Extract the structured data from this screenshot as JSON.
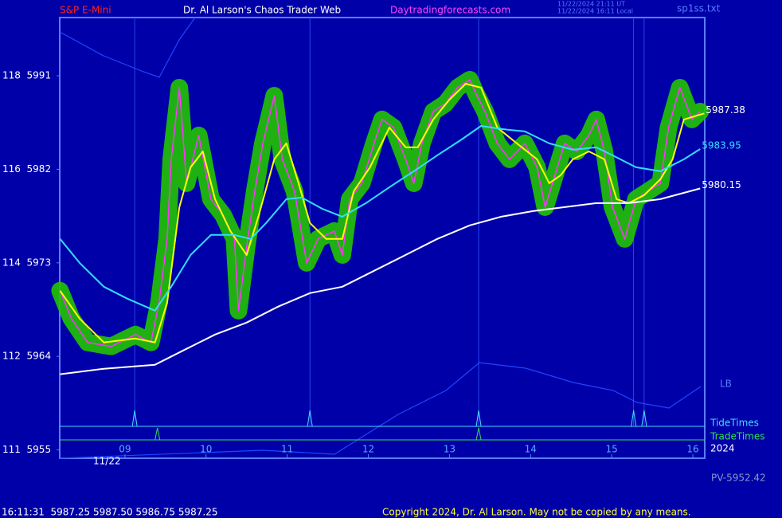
{
  "chart_data": {
    "type": "line",
    "title": "Dr. Al Larson's Chaos Trader Web",
    "symbol": "S&P E-Mini",
    "site": "Daytradingforecasts.com",
    "time_ut": "11/22/2024 21:11 UT",
    "time_local": "11/22/2024 16:11 Local",
    "file": "sp1ss.txt",
    "indicator_label": "LB",
    "year": "2024",
    "date": "11/22",
    "pv": "PV-5952.42",
    "status": "16:11:31  5987.25 5987.50 5986.75 5987.25",
    "copyright": "Copyright 2024, Dr. Al Larson. May not be copied by any means.",
    "xlim": [
      8.196,
      16.147
    ],
    "ylim": [
      5954.2,
      5996.6
    ],
    "xticks": [
      {
        "value": 9,
        "label": "09"
      },
      10,
      11,
      12,
      13,
      14,
      15,
      16
    ],
    "yticks": [
      {
        "value": 5955,
        "label": "111  5955"
      },
      {
        "value": 5964,
        "label": "112  5964"
      },
      {
        "value": 5973,
        "label": "114  5973"
      },
      {
        "value": 5982,
        "label": "116  5982"
      },
      {
        "value": 5991,
        "label": "118  5991"
      }
    ],
    "tide_label": "TideTimes",
    "tide_times": [
      9.12,
      11.28,
      13.36,
      15.27,
      15.4
    ],
    "trade_label": "TradeTimes",
    "trade_times": [
      9.4,
      13.36
    ],
    "x": [
      8.2,
      8.34,
      8.54,
      8.83,
      9.13,
      9.32,
      9.42,
      9.52,
      9.57,
      9.67,
      9.76,
      9.91,
      10.06,
      10.21,
      10.35,
      10.4,
      10.5,
      10.6,
      10.7,
      10.84,
      10.94,
      11.09,
      11.24,
      11.38,
      11.58,
      11.68,
      11.77,
      11.92,
      12.07,
      12.17,
      12.31,
      12.46,
      12.56,
      12.66,
      12.8,
      12.95,
      13.1,
      13.25,
      13.34,
      13.44,
      13.59,
      13.74,
      13.93,
      14.08,
      14.18,
      14.27,
      14.42,
      14.57,
      14.72,
      14.81,
      14.91,
      15.01,
      15.16,
      15.3,
      15.45,
      15.6,
      15.7,
      15.84,
      15.99,
      16.09
    ],
    "series": [
      {
        "color": "#ff33ff",
        "glow": "#22c400",
        "values": [
          5970.32,
          5967.64,
          5965.34,
          5964.96,
          5966.1,
          5965.34,
          5969.17,
          5975.3,
          5982.96,
          5989.85,
          5980.66,
          5985.25,
          5979.13,
          5977.59,
          5975.3,
          5968.4,
          5974.53,
          5979.89,
          5984.49,
          5989.08,
          5982.96,
          5979.89,
          5973.0,
          5975.3,
          5976.06,
          5973.76,
          5979.13,
          5980.66,
          5984.49,
          5986.79,
          5986.02,
          5982.96,
          5980.66,
          5984.49,
          5987.55,
          5988.32,
          5989.85,
          5990.62,
          5989.08,
          5987.55,
          5984.49,
          5982.96,
          5984.49,
          5982.19,
          5978.36,
          5980.66,
          5984.49,
          5983.72,
          5985.25,
          5986.79,
          5983.72,
          5978.36,
          5975.3,
          5979.13,
          5979.89,
          5980.66,
          5986.02,
          5989.85,
          5986.79,
          5987.55
        ]
      },
      {
        "color": "#ffff00",
        "end_label": "5987.38",
        "x": [
          8.2,
          8.44,
          8.74,
          9.13,
          9.37,
          9.52,
          9.67,
          9.81,
          9.96,
          10.11,
          10.3,
          10.5,
          10.65,
          10.84,
          10.99,
          11.14,
          11.28,
          11.48,
          11.68,
          11.82,
          12.02,
          12.26,
          12.46,
          12.61,
          12.8,
          13.0,
          13.2,
          13.39,
          13.59,
          13.83,
          14.08,
          14.23,
          14.37,
          14.52,
          14.72,
          14.91,
          15.06,
          15.21,
          15.4,
          15.6,
          15.75,
          15.89,
          16.14
        ],
        "values": [
          5970.32,
          5967.64,
          5965.34,
          5965.72,
          5965.34,
          5969.17,
          5978.36,
          5982.19,
          5983.72,
          5979.13,
          5976.06,
          5973.76,
          5977.59,
          5982.96,
          5984.49,
          5980.66,
          5976.83,
          5975.3,
          5975.3,
          5979.89,
          5982.19,
          5986.02,
          5984.11,
          5984.11,
          5986.79,
          5988.7,
          5990.23,
          5989.85,
          5986.02,
          5984.49,
          5982.96,
          5980.66,
          5981.43,
          5982.96,
          5983.72,
          5982.96,
          5979.13,
          5978.74,
          5979.51,
          5981.04,
          5982.96,
          5986.79,
          5987.38
        ]
      },
      {
        "color": "#33ddff",
        "end_label": "5983.95",
        "x": [
          8.2,
          8.44,
          8.74,
          9.03,
          9.37,
          9.57,
          9.81,
          10.06,
          10.35,
          10.55,
          10.74,
          10.99,
          11.18,
          11.43,
          11.68,
          11.97,
          12.26,
          12.56,
          12.85,
          13.15,
          13.39,
          13.64,
          13.93,
          14.23,
          14.52,
          14.81,
          15.01,
          15.3,
          15.6,
          15.89,
          16.09
        ],
        "values": [
          5975.3,
          5973.0,
          5970.7,
          5969.55,
          5968.4,
          5970.7,
          5973.76,
          5975.68,
          5975.68,
          5975.3,
          5976.83,
          5979.13,
          5979.28,
          5978.21,
          5977.44,
          5978.74,
          5980.28,
          5981.81,
          5983.34,
          5984.87,
          5986.17,
          5985.87,
          5985.64,
          5984.49,
          5983.88,
          5984.11,
          5983.34,
          5982.19,
          5981.81,
          5982.96,
          5983.95
        ]
      },
      {
        "color": "#ffffff",
        "end_label": "5980.15",
        "x": [
          8.2,
          8.74,
          9.37,
          9.72,
          10.11,
          10.5,
          10.89,
          11.28,
          11.68,
          12.07,
          12.46,
          12.85,
          13.25,
          13.64,
          14.03,
          14.42,
          14.81,
          15.21,
          15.6,
          16.09
        ],
        "values": [
          5962.28,
          5962.81,
          5963.19,
          5964.57,
          5966.1,
          5967.25,
          5968.79,
          5970.09,
          5970.7,
          5972.23,
          5973.76,
          5975.3,
          5976.6,
          5977.44,
          5977.98,
          5978.36,
          5978.74,
          5978.74,
          5979.13,
          5980.15
        ]
      }
    ]
  }
}
